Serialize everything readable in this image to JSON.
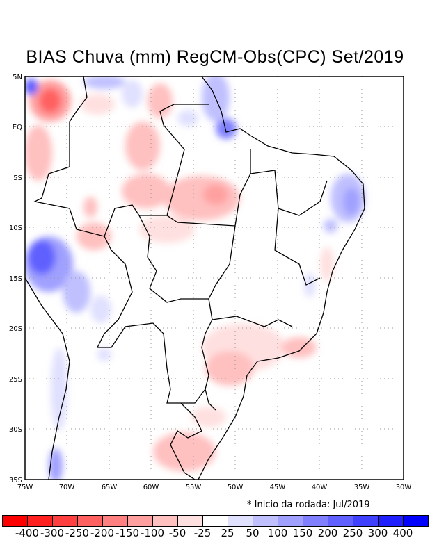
{
  "title": "BIAS Chuva (mm) RegCM-Obs(CPC) Set/2019",
  "axes": {
    "lat_labels": [
      "5N",
      "EQ",
      "5S",
      "10S",
      "15S",
      "20S",
      "25S",
      "30S",
      "35S"
    ],
    "lon_labels": [
      "75W",
      "70W",
      "65W",
      "60W",
      "55W",
      "50W",
      "45W",
      "40W",
      "35W",
      "30W"
    ],
    "lat_range": [
      5,
      -35
    ],
    "lon_range": [
      -75,
      -30
    ]
  },
  "note": "* Inicio da rodada: Jul/2019",
  "colorbar": {
    "colors": [
      "#ff0000",
      "#ff2020",
      "#ff4040",
      "#ff6060",
      "#ff8080",
      "#ffa0a0",
      "#ffc0c0",
      "#ffe0e0",
      "#ffffff",
      "#e0e0ff",
      "#c0c0ff",
      "#a0a0ff",
      "#8080ff",
      "#6060ff",
      "#4040ff",
      "#2020ff",
      "#0000ff"
    ],
    "labels": [
      "-400",
      "-300",
      "-250",
      "-200",
      "-150",
      "-100",
      "-50",
      "-25",
      "25",
      "50",
      "100",
      "150",
      "200",
      "250",
      "300",
      "400"
    ]
  }
}
